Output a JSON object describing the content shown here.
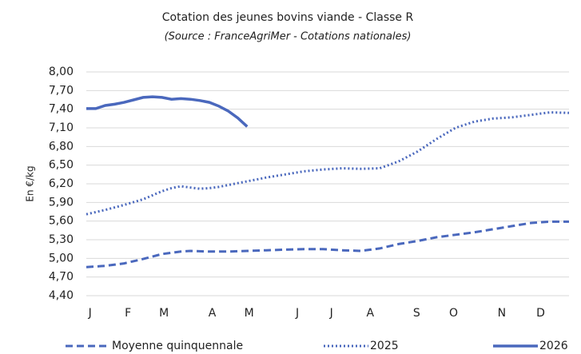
{
  "chart_data": {
    "type": "line",
    "title": "Cotation des jeunes bovins viande - Classe R",
    "subtitle": "(Source : FranceAgriMer -  Cotations nationales)",
    "y_label": "En €/kg",
    "xlim": [
      1,
      52
    ],
    "xticks": [
      {
        "value": 1.4,
        "label": "J"
      },
      {
        "value": 5.4,
        "label": "F"
      },
      {
        "value": 9.2,
        "label": "M"
      },
      {
        "value": 14.3,
        "label": "A"
      },
      {
        "value": 18.2,
        "label": "M"
      },
      {
        "value": 23.3,
        "label": "J"
      },
      {
        "value": 26.9,
        "label": "J"
      },
      {
        "value": 31,
        "label": "A"
      },
      {
        "value": 35.9,
        "label": "S"
      },
      {
        "value": 39.8,
        "label": "O"
      },
      {
        "value": 44.9,
        "label": "N"
      },
      {
        "value": 49,
        "label": "D"
      }
    ],
    "ylim": [
      4.4,
      8.0
    ],
    "yticks": [
      {
        "value": 4.4,
        "label": "4,40"
      },
      {
        "value": 4.7,
        "label": "4,70"
      },
      {
        "value": 5.0,
        "label": "5,00"
      },
      {
        "value": 5.3,
        "label": "5,30"
      },
      {
        "value": 5.6,
        "label": "5,60"
      },
      {
        "value": 5.9,
        "label": "5,90"
      },
      {
        "value": 6.2,
        "label": "6,20"
      },
      {
        "value": 6.5,
        "label": "6,50"
      },
      {
        "value": 6.8,
        "label": "6,80"
      },
      {
        "value": 7.1,
        "label": "7,10"
      },
      {
        "value": 7.4,
        "label": "7,40"
      },
      {
        "value": 7.7,
        "label": "7,70"
      },
      {
        "value": 8.0,
        "label": "8,00"
      }
    ],
    "grid": true,
    "legend": "bottom",
    "series": [
      {
        "name": "Moyenne quinquennale",
        "color": "#4a68bd",
        "dash": "dashed",
        "x": [
          1,
          3,
          5,
          7,
          9,
          11,
          12,
          14,
          16,
          18,
          20,
          22,
          24,
          26,
          28,
          30,
          32,
          34,
          36,
          38,
          40,
          42,
          44,
          46,
          48,
          50,
          52
        ],
        "values": [
          4.86,
          4.88,
          4.92,
          4.99,
          5.07,
          5.11,
          5.12,
          5.11,
          5.11,
          5.12,
          5.13,
          5.14,
          5.15,
          5.15,
          5.13,
          5.12,
          5.16,
          5.23,
          5.28,
          5.34,
          5.38,
          5.42,
          5.47,
          5.52,
          5.57,
          5.59,
          5.59
        ]
      },
      {
        "name": "2025",
        "color": "#4a68bd",
        "dash": "dotted",
        "x": [
          1,
          3,
          5,
          7,
          9,
          10,
          11,
          12,
          13,
          14,
          15,
          17,
          19,
          20,
          22,
          24,
          26,
          28,
          30,
          32,
          34,
          36,
          38,
          40,
          42,
          44,
          46,
          48,
          50,
          52
        ],
        "values": [
          5.71,
          5.78,
          5.86,
          5.95,
          6.08,
          6.13,
          6.16,
          6.14,
          6.12,
          6.13,
          6.15,
          6.21,
          6.27,
          6.3,
          6.35,
          6.4,
          6.43,
          6.45,
          6.44,
          6.45,
          6.56,
          6.72,
          6.92,
          7.1,
          7.2,
          7.25,
          7.27,
          7.31,
          7.35,
          7.34
        ]
      },
      {
        "name": "2026",
        "color": "#4a68bd",
        "dash": "solid",
        "x": [
          1,
          2,
          3,
          4,
          5,
          6,
          7,
          8,
          9,
          10,
          11,
          12,
          13,
          14,
          15,
          16,
          17,
          18
        ],
        "values": [
          7.41,
          7.41,
          7.46,
          7.48,
          7.51,
          7.55,
          7.59,
          7.6,
          7.59,
          7.56,
          7.57,
          7.56,
          7.54,
          7.51,
          7.45,
          7.37,
          7.26,
          7.12
        ]
      }
    ]
  }
}
